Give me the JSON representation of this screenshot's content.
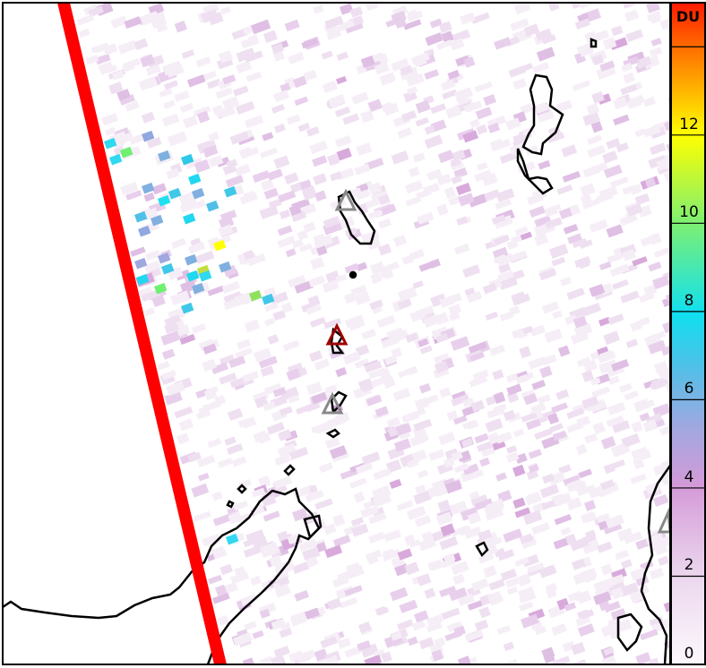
{
  "colorbar": {
    "unit": "DU",
    "min": 0,
    "max": 15,
    "ticks": [
      {
        "value": 0,
        "label": "0"
      },
      {
        "value": 2,
        "label": "2"
      },
      {
        "value": 4,
        "label": "4"
      },
      {
        "value": 6,
        "label": "6"
      },
      {
        "value": 8,
        "label": "8"
      },
      {
        "value": 10,
        "label": "10"
      },
      {
        "value": 12,
        "label": "12"
      },
      {
        "value": 14,
        "label": ""
      }
    ],
    "colors": [
      "#ffffff",
      "#e8d0ec",
      "#d49ad8",
      "#80b0e0",
      "#10e0f0",
      "#70f070",
      "#ffff00",
      "#ff8000",
      "#ff1a00"
    ]
  },
  "map": {
    "swath_edge_color": "#ff0000",
    "volcano_active_color": "#a00000",
    "volcano_color": "#888888",
    "coastline_color": "#000000"
  }
}
